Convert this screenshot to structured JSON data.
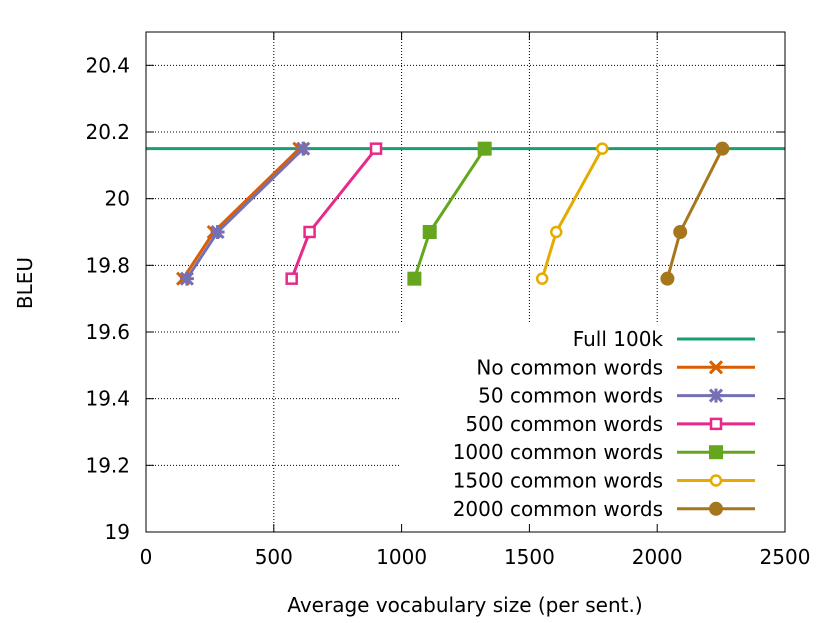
{
  "chart_data": {
    "type": "line",
    "xlabel": "Average vocabulary size (per sent.)",
    "ylabel": "BLEU",
    "xlim": [
      0,
      2500
    ],
    "ylim": [
      19,
      20.5
    ],
    "x_ticks": [
      0,
      500,
      1000,
      1500,
      2000,
      2500
    ],
    "x_tick_labels": [
      "0",
      "500",
      "1000",
      "1500",
      "2000",
      "2500"
    ],
    "y_ticks": [
      19,
      19.2,
      19.4,
      19.6,
      19.8,
      20,
      20.2,
      20.4
    ],
    "y_tick_labels": [
      "19",
      "19.2",
      "19.4",
      "19.6",
      "19.8",
      "20",
      "20.2",
      "20.4"
    ],
    "grid": true,
    "legend_position": "bottom-right",
    "reference_line": {
      "name": "Full 100k",
      "y": 20.15,
      "color": "#1b9e77"
    },
    "series": [
      {
        "name": "No common words",
        "color": "#d95f02",
        "marker": "x",
        "points": [
          [
            145,
            19.76
          ],
          [
            265,
            19.9
          ],
          [
            600,
            20.15
          ]
        ]
      },
      {
        "name": "50 common words",
        "color": "#7570b3",
        "marker": "asterisk",
        "points": [
          [
            160,
            19.76
          ],
          [
            280,
            19.9
          ],
          [
            615,
            20.15
          ]
        ]
      },
      {
        "name": "500 common words",
        "color": "#e7298a",
        "marker": "open-square",
        "points": [
          [
            570,
            19.76
          ],
          [
            640,
            19.9
          ],
          [
            900,
            20.15
          ]
        ]
      },
      {
        "name": "1000 common words",
        "color": "#66a61e",
        "marker": "filled-square",
        "points": [
          [
            1050,
            19.76
          ],
          [
            1110,
            19.9
          ],
          [
            1325,
            20.15
          ]
        ]
      },
      {
        "name": "1500 common words",
        "color": "#e6ab02",
        "marker": "open-circle",
        "points": [
          [
            1550,
            19.76
          ],
          [
            1605,
            19.9
          ],
          [
            1785,
            20.15
          ]
        ]
      },
      {
        "name": "2000 common words",
        "color": "#a6761d",
        "marker": "filled-circle",
        "points": [
          [
            2040,
            19.76
          ],
          [
            2090,
            19.9
          ],
          [
            2255,
            20.15
          ]
        ]
      }
    ]
  }
}
